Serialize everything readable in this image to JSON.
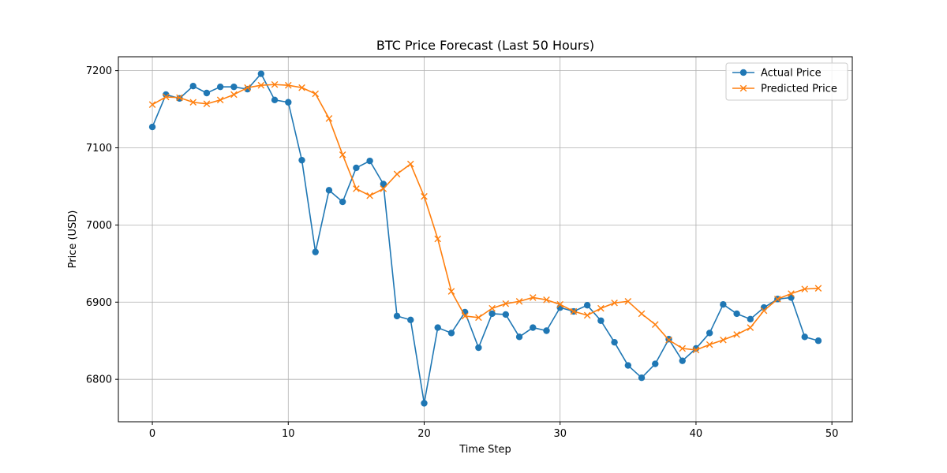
{
  "chart_data": {
    "type": "line",
    "title": "BTC Price Forecast (Last 50 Hours)",
    "xlabel": "Time Step",
    "ylabel": "Price (USD)",
    "xlim": [
      -2.5,
      51.5
    ],
    "ylim": [
      6745,
      7218
    ],
    "xticks": [
      0,
      10,
      20,
      30,
      40,
      50
    ],
    "yticks": [
      6800,
      6900,
      7000,
      7100,
      7200
    ],
    "grid": true,
    "legend_position": "top-right",
    "series": [
      {
        "name": "Actual Price",
        "color": "#1f77b4",
        "marker": "circle",
        "x": [
          0,
          1,
          2,
          3,
          4,
          5,
          6,
          7,
          8,
          9,
          10,
          11,
          12,
          13,
          14,
          15,
          16,
          17,
          18,
          19,
          20,
          21,
          22,
          23,
          24,
          25,
          26,
          27,
          28,
          29,
          30,
          31,
          32,
          33,
          34,
          35,
          36,
          37,
          38,
          39,
          40,
          41,
          42,
          43,
          44,
          45,
          46,
          47,
          48,
          49
        ],
        "values": [
          7127,
          7169,
          7164,
          7180,
          7171,
          7179,
          7179,
          7176,
          7196,
          7162,
          7159,
          7084,
          6965,
          7045,
          7030,
          7074,
          7083,
          7053,
          6882,
          6877,
          6769,
          6867,
          6860,
          6887,
          6841,
          6885,
          6884,
          6855,
          6867,
          6863,
          6893,
          6888,
          6896,
          6876,
          6848,
          6818,
          6802,
          6820,
          6852,
          6824,
          6840,
          6860,
          6897,
          6885,
          6878,
          6893,
          6904,
          6906,
          6855,
          6850
        ]
      },
      {
        "name": "Predicted Price",
        "color": "#ff7f0e",
        "marker": "x",
        "x": [
          0,
          1,
          2,
          3,
          4,
          5,
          6,
          7,
          8,
          9,
          10,
          11,
          12,
          13,
          14,
          15,
          16,
          17,
          18,
          19,
          20,
          21,
          22,
          23,
          24,
          25,
          26,
          27,
          28,
          29,
          30,
          31,
          32,
          33,
          34,
          35,
          36,
          37,
          38,
          39,
          40,
          41,
          42,
          43,
          44,
          45,
          46,
          47,
          48,
          49
        ],
        "values": [
          7156,
          7166,
          7165,
          7159,
          7157,
          7162,
          7169,
          7178,
          7181,
          7182,
          7181,
          7178,
          7170,
          7138,
          7091,
          7047,
          7038,
          7047,
          7066,
          7079,
          7037,
          6982,
          6914,
          6882,
          6880,
          6892,
          6898,
          6901,
          6906,
          6903,
          6897,
          6888,
          6883,
          6892,
          6899,
          6901,
          6885,
          6871,
          6851,
          6840,
          6838,
          6845,
          6851,
          6858,
          6867,
          6889,
          6904,
          6911,
          6917,
          6918
        ]
      }
    ]
  }
}
